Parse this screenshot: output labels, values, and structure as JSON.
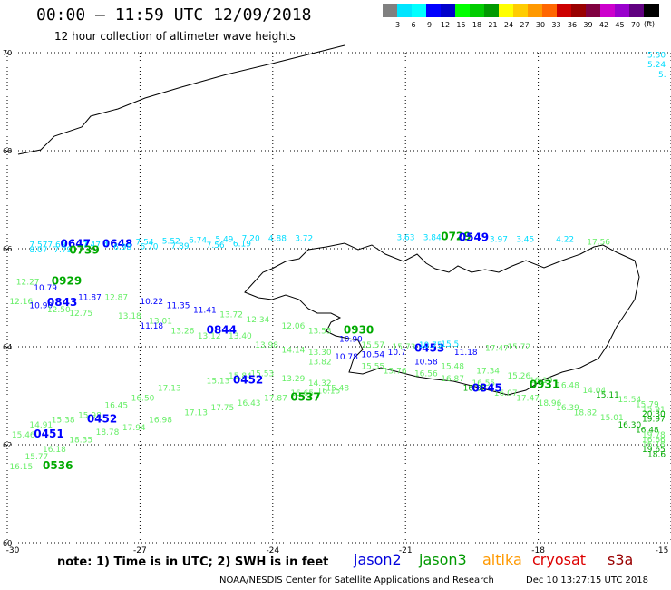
{
  "header": {
    "title": "00:00 — 11:59 UTC 12/09/2018",
    "subtitle": "12 hour collection of altimeter wave heights"
  },
  "colorbar": {
    "unit": "(ft)",
    "colors": [
      "#808080",
      "#00e5ff",
      "#00ffff",
      "#0000ff",
      "#0000cc",
      "#00ff00",
      "#00cc00",
      "#009900",
      "#ffff00",
      "#ffcc00",
      "#ff9900",
      "#ff6600",
      "#cc0000",
      "#990000",
      "#800040",
      "#cc00cc",
      "#9900cc",
      "#600080",
      "#000000"
    ],
    "labels": [
      "3",
      "6",
      "9",
      "12",
      "15",
      "18",
      "21",
      "24",
      "27",
      "30",
      "33",
      "36",
      "39",
      "42",
      "45",
      "70"
    ]
  },
  "chart_data": {
    "type": "scatter",
    "xlim": [
      -30,
      -15
    ],
    "ylim": [
      60,
      70
    ],
    "x_ticks": [
      "-30",
      "-27",
      "-24",
      "-21",
      "-18",
      "-15"
    ],
    "y_ticks": [
      "70",
      "68",
      "66",
      "64",
      "62",
      "60"
    ],
    "grid": true,
    "annotations": [
      {
        "lon": -15.0,
        "lat": 69.9,
        "text": "5.30",
        "color": "#00ddff"
      },
      {
        "lon": -14.7,
        "lat": 69.7,
        "text": "5.24",
        "color": "#00ddff"
      },
      {
        "lon": -14.5,
        "lat": 69.5,
        "text": "5.",
        "color": "#00ddff"
      },
      {
        "lon": -29.5,
        "lat": 66.03,
        "text": "7.577.69",
        "color": "#00ddff"
      },
      {
        "lon": -28.8,
        "lat": 66.03,
        "text": "0647",
        "color": "#0000ff"
      },
      {
        "lon": -28.3,
        "lat": 66.03,
        "text": "7.47.4",
        "color": "#00ddff"
      },
      {
        "lon": -27.85,
        "lat": 66.03,
        "text": "0648",
        "color": "#0000ff"
      },
      {
        "lon": -27.1,
        "lat": 66.08,
        "text": "7.54",
        "color": "#00ddff"
      },
      {
        "lon": -26.5,
        "lat": 66.1,
        "text": "5.52",
        "color": "#00ddff"
      },
      {
        "lon": -25.9,
        "lat": 66.12,
        "text": "6.74",
        "color": "#00ddff"
      },
      {
        "lon": -25.3,
        "lat": 66.14,
        "text": "5.49",
        "color": "#00ddff"
      },
      {
        "lon": -24.7,
        "lat": 66.16,
        "text": "7.20",
        "color": "#00ddff"
      },
      {
        "lon": -24.1,
        "lat": 66.16,
        "text": "4.88",
        "color": "#00ddff"
      },
      {
        "lon": -23.5,
        "lat": 66.16,
        "text": "3.72",
        "color": "#00ddff"
      },
      {
        "lon": -29.5,
        "lat": 65.93,
        "text": "8.07",
        "color": "#00ddff"
      },
      {
        "lon": -28.95,
        "lat": 65.93,
        "text": "7.79",
        "color": "#00ddff"
      },
      {
        "lon": -28.6,
        "lat": 65.9,
        "text": "0739",
        "color": "#00aa00"
      },
      {
        "lon": -27.6,
        "lat": 65.98,
        "text": "6.98",
        "color": "#00ddff"
      },
      {
        "lon": -27.0,
        "lat": 65.99,
        "text": "6.70",
        "color": "#00ddff"
      },
      {
        "lon": -26.3,
        "lat": 66.0,
        "text": "7.89",
        "color": "#00ddff"
      },
      {
        "lon": -25.5,
        "lat": 66.02,
        "text": "7.56",
        "color": "#00ddff"
      },
      {
        "lon": -24.9,
        "lat": 66.05,
        "text": "6.19",
        "color": "#00ddff"
      },
      {
        "lon": -21.2,
        "lat": 66.18,
        "text": "3.63",
        "color": "#00ddff"
      },
      {
        "lon": -20.6,
        "lat": 66.18,
        "text": "3.84",
        "color": "#00ddff"
      },
      {
        "lon": -20.2,
        "lat": 66.18,
        "text": "0729",
        "color": "#00aa00"
      },
      {
        "lon": -19.8,
        "lat": 66.16,
        "text": "0549",
        "color": "#0000ff"
      },
      {
        "lon": -19.1,
        "lat": 66.14,
        "text": "3.97",
        "color": "#00ddff"
      },
      {
        "lon": -18.5,
        "lat": 66.14,
        "text": "3.45",
        "color": "#00ddff"
      },
      {
        "lon": -17.6,
        "lat": 66.14,
        "text": "4.22",
        "color": "#00ddff"
      },
      {
        "lon": -16.9,
        "lat": 66.08,
        "text": "17.56",
        "color": "#66ee66"
      },
      {
        "lon": -29.8,
        "lat": 65.27,
        "text": "12.27",
        "color": "#66ee66"
      },
      {
        "lon": -29.0,
        "lat": 65.27,
        "text": "0929",
        "color": "#00aa00"
      },
      {
        "lon": -29.4,
        "lat": 65.15,
        "text": "10.79",
        "color": "#0000ff"
      },
      {
        "lon": -28.4,
        "lat": 64.95,
        "text": "11.87",
        "color": "#0000ff"
      },
      {
        "lon": -27.8,
        "lat": 64.95,
        "text": "12.87",
        "color": "#66ee66"
      },
      {
        "lon": -29.95,
        "lat": 64.87,
        "text": "12.16",
        "color": "#66ee66"
      },
      {
        "lon": -29.5,
        "lat": 64.79,
        "text": "10.90",
        "color": "#0000ff"
      },
      {
        "lon": -29.1,
        "lat": 64.83,
        "text": "0843",
        "color": "#0000ff"
      },
      {
        "lon": -29.1,
        "lat": 64.7,
        "text": "12.50",
        "color": "#66ee66"
      },
      {
        "lon": -28.6,
        "lat": 64.63,
        "text": "12.75",
        "color": "#66ee66"
      },
      {
        "lon": -27.5,
        "lat": 64.57,
        "text": "13.18",
        "color": "#66ee66"
      },
      {
        "lon": -26.8,
        "lat": 64.47,
        "text": "13.01",
        "color": "#66ee66"
      },
      {
        "lon": -27.0,
        "lat": 64.87,
        "text": "10.22",
        "color": "#0000ff"
      },
      {
        "lon": -26.4,
        "lat": 64.79,
        "text": "11.35",
        "color": "#0000ff"
      },
      {
        "lon": -25.8,
        "lat": 64.69,
        "text": "11.41",
        "color": "#0000ff"
      },
      {
        "lon": -25.2,
        "lat": 64.6,
        "text": "13.72",
        "color": "#66ee66"
      },
      {
        "lon": -24.6,
        "lat": 64.5,
        "text": "12.34",
        "color": "#66ee66"
      },
      {
        "lon": -27.0,
        "lat": 64.37,
        "text": "11.18",
        "color": "#0000ff"
      },
      {
        "lon": -26.3,
        "lat": 64.27,
        "text": "13.26",
        "color": "#66ee66"
      },
      {
        "lon": -25.7,
        "lat": 64.17,
        "text": "13.12",
        "color": "#66ee66"
      },
      {
        "lon": -25.0,
        "lat": 64.17,
        "text": "13.40",
        "color": "#66ee66"
      },
      {
        "lon": -24.4,
        "lat": 63.98,
        "text": "13.98",
        "color": "#66ee66"
      },
      {
        "lon": -25.5,
        "lat": 64.27,
        "text": "0844",
        "color": "#0000ff"
      },
      {
        "lon": -23.8,
        "lat": 64.37,
        "text": "12.06",
        "color": "#66ee66"
      },
      {
        "lon": -23.2,
        "lat": 64.27,
        "text": "13.53",
        "color": "#66ee66"
      },
      {
        "lon": -22.4,
        "lat": 64.27,
        "text": "0930",
        "color": "#00aa00"
      },
      {
        "lon": -23.8,
        "lat": 63.88,
        "text": "14.14",
        "color": "#66ee66"
      },
      {
        "lon": -23.2,
        "lat": 63.83,
        "text": "13.30",
        "color": "#66ee66"
      },
      {
        "lon": -22.5,
        "lat": 64.1,
        "text": "10.90",
        "color": "#0000ff"
      },
      {
        "lon": -22.0,
        "lat": 63.98,
        "text": "15.57",
        "color": "#66ee66"
      },
      {
        "lon": -21.3,
        "lat": 63.94,
        "text": "15.73",
        "color": "#66ee66"
      },
      {
        "lon": -20.8,
        "lat": 63.9,
        "text": "0453",
        "color": "#0000ff"
      },
      {
        "lon": -19.9,
        "lat": 63.83,
        "text": "11.18",
        "color": "#0000ff"
      },
      {
        "lon": -19.2,
        "lat": 63.92,
        "text": "17.47",
        "color": "#66ee66"
      },
      {
        "lon": -18.7,
        "lat": 63.94,
        "text": "15.72",
        "color": "#66ee66"
      },
      {
        "lon": -22.6,
        "lat": 63.74,
        "text": "10.78",
        "color": "#0000ff"
      },
      {
        "lon": -22.0,
        "lat": 63.79,
        "text": "10.54",
        "color": "#0000ff"
      },
      {
        "lon": -21.4,
        "lat": 63.83,
        "text": "10.7",
        "color": "#0000ff"
      },
      {
        "lon": -20.7,
        "lat": 63.98,
        "text": "10.75",
        "color": "#00ddff"
      },
      {
        "lon": -20.2,
        "lat": 64.0,
        "text": "15.5",
        "color": "#00ddff"
      },
      {
        "lon": -23.2,
        "lat": 63.64,
        "text": "13.82",
        "color": "#66ee66"
      },
      {
        "lon": -22.0,
        "lat": 63.55,
        "text": "15.55",
        "color": "#66ee66"
      },
      {
        "lon": -21.5,
        "lat": 63.45,
        "text": "15.76",
        "color": "#66ee66"
      },
      {
        "lon": -20.8,
        "lat": 63.4,
        "text": "16.56",
        "color": "#66ee66"
      },
      {
        "lon": -20.2,
        "lat": 63.3,
        "text": "16.87",
        "color": "#66ee66"
      },
      {
        "lon": -19.5,
        "lat": 63.2,
        "text": "16.55",
        "color": "#66ee66"
      },
      {
        "lon": -20.8,
        "lat": 63.64,
        "text": "10.58",
        "color": "#0000ff"
      },
      {
        "lon": -20.2,
        "lat": 63.55,
        "text": "15.48",
        "color": "#66ee66"
      },
      {
        "lon": -19.4,
        "lat": 63.45,
        "text": "17.34",
        "color": "#66ee66"
      },
      {
        "lon": -18.7,
        "lat": 63.35,
        "text": "15.26",
        "color": "#66ee66"
      },
      {
        "lon": -18.2,
        "lat": 63.26,
        "text": "16.19",
        "color": "#66ee66"
      },
      {
        "lon": -17.6,
        "lat": 63.16,
        "text": "16.48",
        "color": "#66ee66"
      },
      {
        "lon": -17.0,
        "lat": 63.06,
        "text": "14.04",
        "color": "#66ee66"
      },
      {
        "lon": -18.2,
        "lat": 63.16,
        "text": "0931",
        "color": "#00aa00"
      },
      {
        "lon": -16.7,
        "lat": 62.96,
        "text": "15.11",
        "color": "#00aa00"
      },
      {
        "lon": -16.2,
        "lat": 62.87,
        "text": "15.54",
        "color": "#66ee66"
      },
      {
        "lon": -15.8,
        "lat": 62.77,
        "text": "15.79",
        "color": "#66ee66"
      },
      {
        "lon": -15.5,
        "lat": 62.67,
        "text": "15.91",
        "color": "#66ee66"
      },
      {
        "lon": -15.2,
        "lat": 62.57,
        "text": "20.30",
        "color": "#00aa00"
      },
      {
        "lon": -15.1,
        "lat": 62.47,
        "text": "19.97",
        "color": "#00aa00"
      },
      {
        "lon": -19.7,
        "lat": 63.1,
        "text": "16.30",
        "color": "#00aa00"
      },
      {
        "lon": -19.0,
        "lat": 63.0,
        "text": "16.07",
        "color": "#66ee66"
      },
      {
        "lon": -18.5,
        "lat": 62.9,
        "text": "17.47",
        "color": "#66ee66"
      },
      {
        "lon": -19.5,
        "lat": 63.08,
        "text": "0845",
        "color": "#0000ff"
      },
      {
        "lon": -18.0,
        "lat": 62.8,
        "text": "18.96",
        "color": "#66ee66"
      },
      {
        "lon": -17.6,
        "lat": 62.7,
        "text": "16.39",
        "color": "#66ee66"
      },
      {
        "lon": -17.2,
        "lat": 62.6,
        "text": "18.82",
        "color": "#66ee66"
      },
      {
        "lon": -16.6,
        "lat": 62.5,
        "text": "15.01",
        "color": "#66ee66"
      },
      {
        "lon": -16.2,
        "lat": 62.35,
        "text": "16.30",
        "color": "#00aa00"
      },
      {
        "lon": -15.8,
        "lat": 62.25,
        "text": "16.48",
        "color": "#00aa00"
      },
      {
        "lon": -15.5,
        "lat": 62.15,
        "text": "19.78",
        "color": "#66ee66"
      },
      {
        "lon": -15.2,
        "lat": 62.05,
        "text": "16.66",
        "color": "#66ee66"
      },
      {
        "lon": -15.0,
        "lat": 61.95,
        "text": "16.18",
        "color": "#66ee66"
      },
      {
        "lon": -14.7,
        "lat": 61.85,
        "text": "19.65",
        "color": "#00aa00"
      },
      {
        "lon": -14.5,
        "lat": 61.75,
        "text": "18.6",
        "color": "#00aa00"
      },
      {
        "lon": -25.5,
        "lat": 63.25,
        "text": "15.13",
        "color": "#66ee66"
      },
      {
        "lon": -25.0,
        "lat": 63.35,
        "text": "15.84",
        "color": "#66ee66"
      },
      {
        "lon": -24.5,
        "lat": 63.4,
        "text": "15.53",
        "color": "#66ee66"
      },
      {
        "lon": -23.8,
        "lat": 63.3,
        "text": "13.29",
        "color": "#66ee66"
      },
      {
        "lon": -23.2,
        "lat": 63.2,
        "text": "14.32",
        "color": "#66ee66"
      },
      {
        "lon": -22.8,
        "lat": 63.1,
        "text": "15.48",
        "color": "#66ee66"
      },
      {
        "lon": -24.9,
        "lat": 63.25,
        "text": "0452",
        "color": "#0000ff"
      },
      {
        "lon": -26.6,
        "lat": 63.1,
        "text": "17.13",
        "color": "#66ee66"
      },
      {
        "lon": -27.2,
        "lat": 62.9,
        "text": "16.50",
        "color": "#66ee66"
      },
      {
        "lon": -27.8,
        "lat": 62.75,
        "text": "16.45",
        "color": "#66ee66"
      },
      {
        "lon": -28.4,
        "lat": 62.55,
        "text": "15.98",
        "color": "#66ee66"
      },
      {
        "lon": -29.0,
        "lat": 62.45,
        "text": "15.38",
        "color": "#66ee66"
      },
      {
        "lon": -29.5,
        "lat": 62.35,
        "text": "14.91",
        "color": "#66ee66"
      },
      {
        "lon": -29.9,
        "lat": 62.15,
        "text": "15.46",
        "color": "#66ee66"
      },
      {
        "lon": -28.2,
        "lat": 62.45,
        "text": "0452",
        "color": "#0000ff"
      },
      {
        "lon": -29.4,
        "lat": 62.15,
        "text": "0451",
        "color": "#0000ff"
      },
      {
        "lon": -26.0,
        "lat": 62.6,
        "text": "17.13",
        "color": "#66ee66"
      },
      {
        "lon": -25.4,
        "lat": 62.7,
        "text": "17.75",
        "color": "#66ee66"
      },
      {
        "lon": -24.8,
        "lat": 62.8,
        "text": "16.43",
        "color": "#66ee66"
      },
      {
        "lon": -24.2,
        "lat": 62.9,
        "text": "17.87",
        "color": "#66ee66"
      },
      {
        "lon": -23.6,
        "lat": 63.0,
        "text": "16.65",
        "color": "#66ee66"
      },
      {
        "lon": -23.0,
        "lat": 63.05,
        "text": "16.15",
        "color": "#66ee66"
      },
      {
        "lon": -23.6,
        "lat": 62.9,
        "text": "0537",
        "color": "#00aa00"
      },
      {
        "lon": -26.8,
        "lat": 62.45,
        "text": "16.98",
        "color": "#66ee66"
      },
      {
        "lon": -27.4,
        "lat": 62.3,
        "text": "17.94",
        "color": "#66ee66"
      },
      {
        "lon": -28.0,
        "lat": 62.2,
        "text": "18.78",
        "color": "#66ee66"
      },
      {
        "lon": -28.6,
        "lat": 62.05,
        "text": "18.35",
        "color": "#66ee66"
      },
      {
        "lon": -29.2,
        "lat": 61.85,
        "text": "16.18",
        "color": "#66ee66"
      },
      {
        "lon": -29.6,
        "lat": 61.7,
        "text": "15.77",
        "color": "#66ee66"
      },
      {
        "lon": -29.95,
        "lat": 61.5,
        "text": "16.15",
        "color": "#66ee66"
      },
      {
        "lon": -29.2,
        "lat": 61.5,
        "text": "0536",
        "color": "#00aa00"
      }
    ]
  },
  "footer": {
    "note": "note:  1) Time is in UTC;  2) SWH is in feet",
    "satellites": [
      {
        "name": "jason2",
        "color": "#0000dd"
      },
      {
        "name": "jason3",
        "color": "#009900"
      },
      {
        "name": "altika",
        "color": "#ff9900"
      },
      {
        "name": "cryosat",
        "color": "#dd0000"
      },
      {
        "name": "s3a",
        "color": "#990000"
      }
    ],
    "credit": "NOAA/NESDIS Center for Satellite Applications and Research",
    "timestamp": "Dec 10 13:27:15 UTC 2018"
  }
}
